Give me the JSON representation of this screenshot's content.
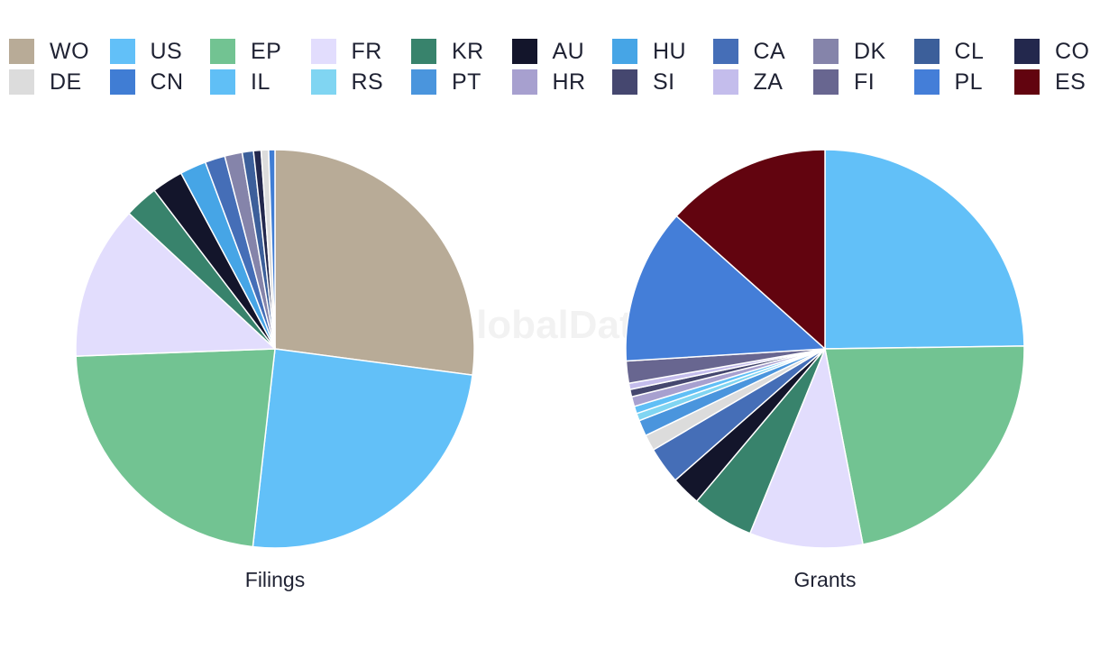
{
  "watermark": "GlobalData",
  "legend": {
    "items": [
      {
        "label": "WO",
        "color": "#b8ab97"
      },
      {
        "label": "US",
        "color": "#62c0f8"
      },
      {
        "label": "EP",
        "color": "#72c392"
      },
      {
        "label": "FR",
        "color": "#e2ddfd"
      },
      {
        "label": "KR",
        "color": "#38836c"
      },
      {
        "label": "AU",
        "color": "#13152b"
      },
      {
        "label": "HU",
        "color": "#46a5e6"
      },
      {
        "label": "CA",
        "color": "#456eb7"
      },
      {
        "label": "DK",
        "color": "#8584aa"
      },
      {
        "label": "CL",
        "color": "#3c5f9a"
      },
      {
        "label": "CO",
        "color": "#23284d"
      },
      {
        "label": "DE",
        "color": "#dcdcdc"
      },
      {
        "label": "CN",
        "color": "#407dd4"
      },
      {
        "label": "IL",
        "color": "#60bff6"
      },
      {
        "label": "RS",
        "color": "#80d5f2"
      },
      {
        "label": "PT",
        "color": "#4a95dd"
      },
      {
        "label": "HR",
        "color": "#a7a0cf"
      },
      {
        "label": "SI",
        "color": "#45476f"
      },
      {
        "label": "ZA",
        "color": "#c4bdec"
      },
      {
        "label": "FI",
        "color": "#686690"
      },
      {
        "label": "PL",
        "color": "#447ed8"
      },
      {
        "label": "ES",
        "color": "#62040f"
      }
    ]
  },
  "chart_data": [
    {
      "type": "pie",
      "title": "Filings",
      "slices": [
        {
          "label": "WO",
          "value": 26.7
        },
        {
          "label": "US",
          "value": 24.3
        },
        {
          "label": "EP",
          "value": 22.3
        },
        {
          "label": "FR",
          "value": 12.3
        },
        {
          "label": "KR",
          "value": 2.7
        },
        {
          "label": "AU",
          "value": 2.5
        },
        {
          "label": "HU",
          "value": 2.1
        },
        {
          "label": "CA",
          "value": 1.6
        },
        {
          "label": "DK",
          "value": 1.4
        },
        {
          "label": "CL",
          "value": 0.9
        },
        {
          "label": "CO",
          "value": 0.6
        },
        {
          "label": "DE",
          "value": 0.6
        },
        {
          "label": "CN",
          "value": 0.5
        }
      ]
    },
    {
      "type": "pie",
      "title": "Grants",
      "slices": [
        {
          "label": "US",
          "value": 24.8
        },
        {
          "label": "EP",
          "value": 22.2
        },
        {
          "label": "FR",
          "value": 9.2
        },
        {
          "label": "KR",
          "value": 5.0
        },
        {
          "label": "AU",
          "value": 2.4
        },
        {
          "label": "CA",
          "value": 3.0
        },
        {
          "label": "DE",
          "value": 1.3
        },
        {
          "label": "PT",
          "value": 1.3
        },
        {
          "label": "RS",
          "value": 0.6
        },
        {
          "label": "IL",
          "value": 0.6
        },
        {
          "label": "HR",
          "value": 0.8
        },
        {
          "label": "SI",
          "value": 0.6
        },
        {
          "label": "ZA",
          "value": 0.5
        },
        {
          "label": "FI",
          "value": 1.8
        },
        {
          "label": "PL",
          "value": 12.6
        },
        {
          "label": "ES",
          "value": 13.4
        }
      ]
    }
  ]
}
